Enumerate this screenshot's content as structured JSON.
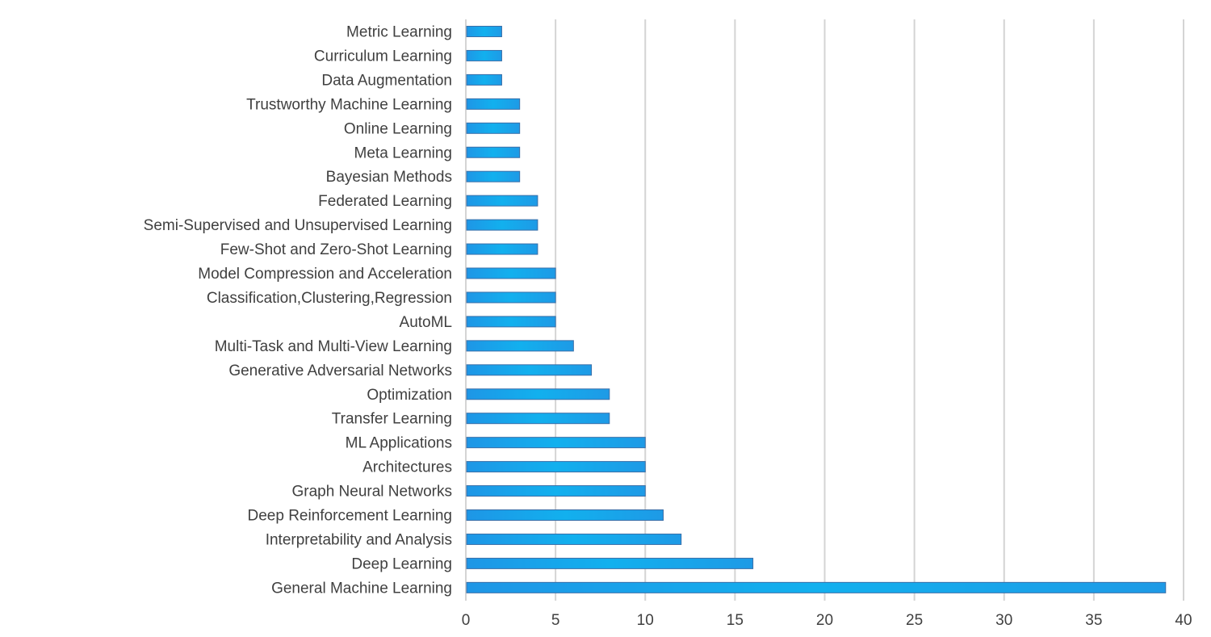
{
  "chart_data": {
    "type": "bar",
    "orientation": "horizontal",
    "title": "",
    "xlabel": "",
    "ylabel": "",
    "xlim": [
      0,
      40
    ],
    "x_ticks": [
      0,
      5,
      10,
      15,
      20,
      25,
      30,
      35,
      40
    ],
    "grid": true,
    "legend": "none",
    "bar_color": "#1aa8e8",
    "bar_edge_color": "#3a6fa8",
    "grid_color": "#d4d4d4",
    "text_color": "#404040",
    "categories": [
      "Metric Learning",
      "Curriculum Learning",
      "Data Augmentation",
      "Trustworthy Machine Learning",
      "Online Learning",
      "Meta Learning",
      "Bayesian Methods",
      "Federated Learning",
      "Semi-Supervised and Unsupervised Learning",
      "Few-Shot and Zero-Shot Learning",
      "Model Compression and Acceleration",
      "Classification,Clustering,Regression",
      "AutoML",
      "Multi-Task and Multi-View Learning",
      "Generative Adversarial Networks",
      "Optimization",
      "Transfer Learning",
      "ML Applications",
      "Architectures",
      "Graph Neural Networks",
      "Deep Reinforcement Learning",
      "Interpretability and Analysis",
      "Deep Learning",
      "General Machine Learning"
    ],
    "values": [
      2,
      2,
      2,
      3,
      3,
      3,
      3,
      4,
      4,
      4,
      5,
      5,
      5,
      6,
      7,
      8,
      8,
      10,
      10,
      10,
      11,
      12,
      16,
      39
    ]
  }
}
